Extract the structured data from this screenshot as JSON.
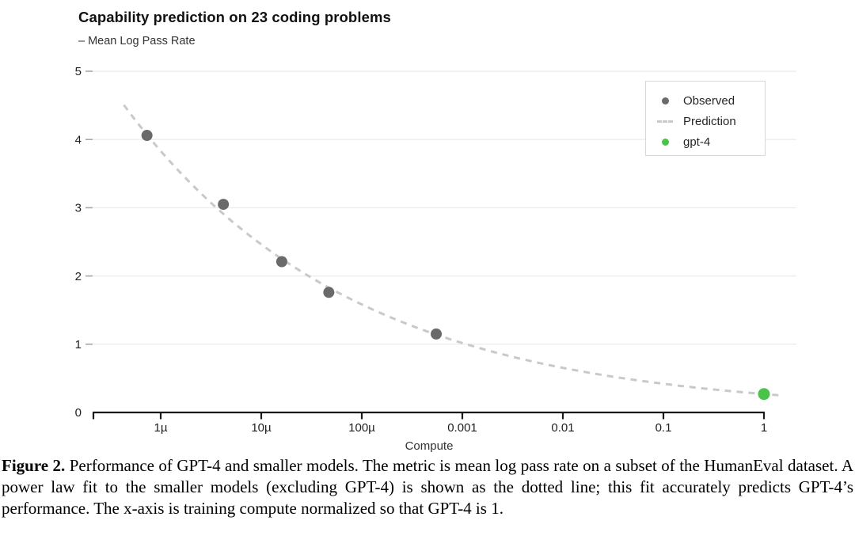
{
  "chart": {
    "title": "Capability prediction on 23 coding problems",
    "subtitle": "– Mean Log Pass Rate",
    "xlabel": "Compute"
  },
  "chart_data": {
    "type": "scatter",
    "title": "Capability prediction on 23 coding problems",
    "ylabel": "Mean Log Pass Rate",
    "xlabel": "Compute",
    "x_scale": "log10",
    "xlim": [
      3.2e-07,
      1.45
    ],
    "ylim": [
      0,
      5
    ],
    "grid": "horizontal-only",
    "y_ticks": [
      0,
      1,
      2,
      3,
      4,
      5
    ],
    "x_ticks": [
      {
        "label": "1µ",
        "value": 1e-06
      },
      {
        "label": "10µ",
        "value": 1e-05
      },
      {
        "label": "100µ",
        "value": 0.0001
      },
      {
        "label": "0.001",
        "value": 0.001
      },
      {
        "label": "0.01",
        "value": 0.01
      },
      {
        "label": "0.1",
        "value": 0.1
      },
      {
        "label": "1",
        "value": 1
      }
    ],
    "series": [
      {
        "name": "Observed",
        "kind": "points",
        "color": "#6a6a6a",
        "marker_radius": 7,
        "points": [
          {
            "x": 7.3e-07,
            "y": 4.06
          },
          {
            "x": 4.2e-06,
            "y": 3.05
          },
          {
            "x": 1.6e-05,
            "y": 2.21
          },
          {
            "x": 4.7e-05,
            "y": 1.76
          },
          {
            "x": 0.00055,
            "y": 1.15
          }
        ]
      },
      {
        "name": "Prediction",
        "kind": "power-law-dashed-line",
        "color": "#c9c9c9",
        "fit": {
          "formula": "y = 0.27 · x^(-0.192)",
          "coefficient": 0.27,
          "exponent": -0.192
        },
        "x_range": [
          4.3e-07,
          1.5
        ]
      },
      {
        "name": "gpt-4",
        "kind": "points",
        "color": "#4bc34b",
        "marker_radius": 7.5,
        "points": [
          {
            "x": 1.0,
            "y": 0.27
          }
        ]
      }
    ],
    "legend": {
      "position": "top-right",
      "items": [
        {
          "label": "Observed",
          "symbol": "dot",
          "color": "#6a6a6a"
        },
        {
          "label": "Prediction",
          "symbol": "dashed-line",
          "color": "#c9c9c9"
        },
        {
          "label": "gpt-4",
          "symbol": "dot",
          "color": "#4bc34b"
        }
      ]
    }
  },
  "caption": {
    "label": "Figure 2.",
    "text": "Performance of GPT-4 and smaller models. The metric is mean log pass rate on a subset of the HumanEval dataset. A power law fit to the smaller models (excluding GPT-4) is shown as the dotted line; this fit accurately predicts GPT-4’s performance. The x-axis is training compute normalized so that GPT-4 is 1."
  }
}
